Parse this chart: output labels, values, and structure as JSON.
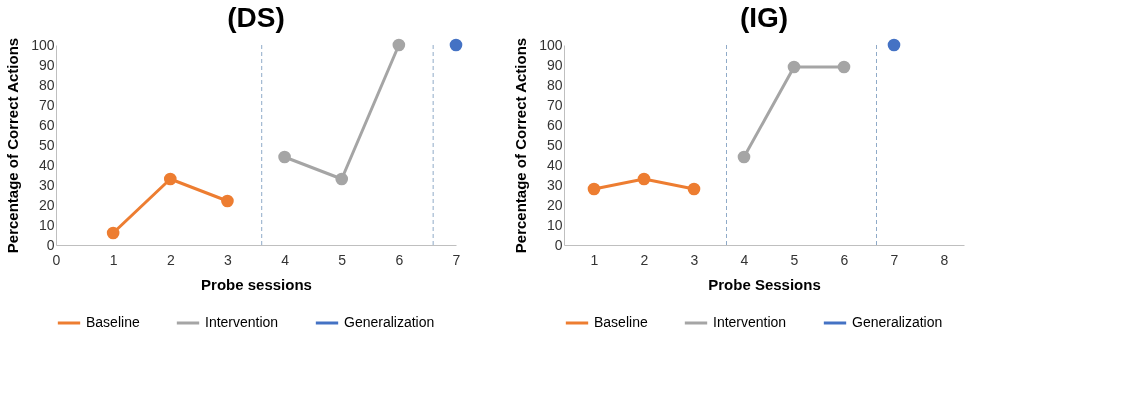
{
  "chart_data": [
    {
      "type": "line",
      "title": "(DS)",
      "xlabel": "Probe sessions",
      "ylabel": "Percentage of Correct Actions",
      "xlim": [
        0,
        7
      ],
      "xticks": [
        0,
        1,
        2,
        3,
        4,
        5,
        6,
        7
      ],
      "ylim": [
        0,
        100
      ],
      "yticks": [
        0,
        10,
        20,
        30,
        40,
        50,
        60,
        70,
        80,
        90,
        100
      ],
      "grid": false,
      "legend": "bottom",
      "marker": "circle",
      "line_style": "solid",
      "series": [
        {
          "name": "Baseline",
          "color": "#ed7d31",
          "x": [
            1,
            2,
            3
          ],
          "values": [
            6,
            33,
            22
          ]
        },
        {
          "name": "Intervention",
          "color": "#a5a5a5",
          "x": [
            4,
            5,
            6
          ],
          "values": [
            44,
            33,
            100
          ]
        },
        {
          "name": "Generalization",
          "color": "#4472c4",
          "x": [
            7
          ],
          "values": [
            100
          ]
        }
      ],
      "ref_lines": [
        {
          "axis": "x",
          "value": 3.6,
          "color": "#8faac8",
          "line_style": "dashed"
        },
        {
          "axis": "x",
          "value": 6.6,
          "color": "#8faac8",
          "line_style": "dashed"
        }
      ]
    },
    {
      "type": "line",
      "title": "(IG)",
      "xlabel": "Probe Sessions",
      "ylabel": "Percentage of Correct Actions",
      "xlim": [
        0.4,
        8.4
      ],
      "xticks": [
        1,
        2,
        3,
        4,
        5,
        6,
        7,
        8
      ],
      "ylim": [
        0,
        100
      ],
      "yticks": [
        0,
        10,
        20,
        30,
        40,
        50,
        60,
        70,
        80,
        90,
        100
      ],
      "grid": false,
      "legend": "bottom",
      "marker": "circle",
      "line_style": "solid",
      "series": [
        {
          "name": "Baseline",
          "color": "#ed7d31",
          "x": [
            1,
            2,
            3
          ],
          "values": [
            28,
            33,
            28
          ]
        },
        {
          "name": "Intervention",
          "color": "#a5a5a5",
          "x": [
            4,
            5,
            6
          ],
          "values": [
            44,
            89,
            89
          ]
        },
        {
          "name": "Generalization",
          "color": "#4472c4",
          "x": [
            7
          ],
          "values": [
            100
          ]
        }
      ],
      "ref_lines": [
        {
          "axis": "x",
          "value": 3.65,
          "color": "#8faac8",
          "line_style": "dashed"
        },
        {
          "axis": "x",
          "value": 6.65,
          "color": "#8faac8",
          "line_style": "dashed"
        }
      ]
    }
  ]
}
